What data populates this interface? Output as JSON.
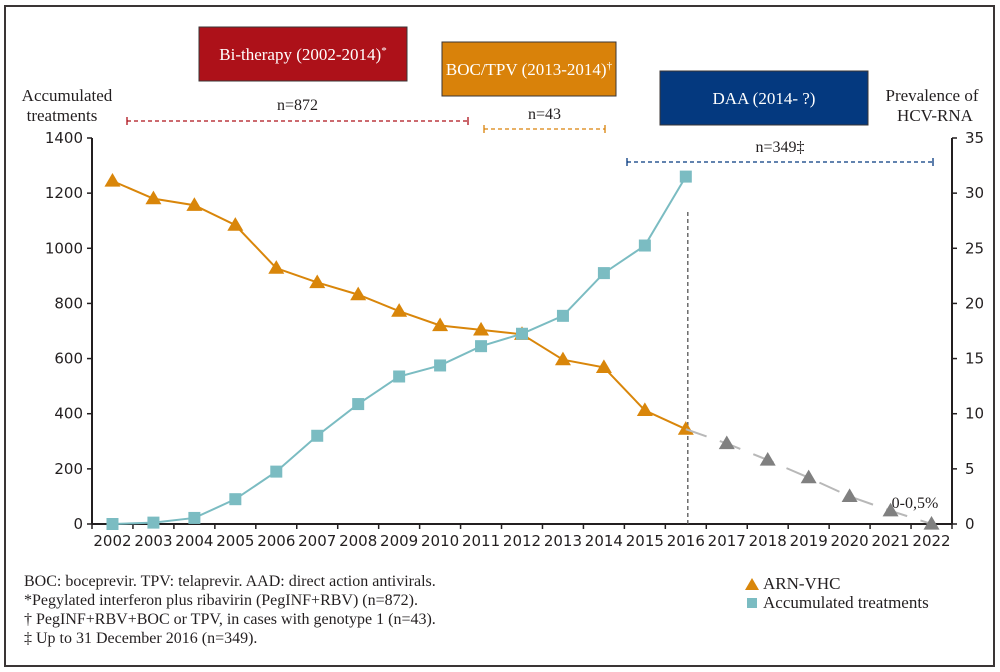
{
  "chart_data": {
    "type": "line",
    "title": "",
    "phases": [
      {
        "label": "Bi-therapy (2002-2014)",
        "marker": "*",
        "n_label": "n=872",
        "color": "#ad1119",
        "range": [
          2002,
          2011
        ]
      },
      {
        "label": "BOC/TPV (2013-2014)",
        "marker": "†",
        "n_label": "n=43",
        "color": "#d9820a",
        "range": [
          2012,
          2015
        ]
      },
      {
        "label": "DAA (2014- ?)",
        "marker": "",
        "n_label": "n=349‡",
        "color": "#04397f",
        "range": [
          2014.5,
          2022
        ]
      }
    ],
    "left_axis": {
      "label_line1": "Accumulated",
      "label_line2": "treatments",
      "ylim": [
        0,
        1400
      ],
      "ticks": [
        "0",
        "200",
        "400",
        "600",
        "800",
        "1000",
        "1200",
        "1400"
      ]
    },
    "right_axis": {
      "label_line1": "Prevalence of",
      "label_line2": "HCV-RNA",
      "ylim": [
        0,
        35
      ],
      "ticks": [
        "0",
        "5",
        "10",
        "15",
        "20",
        "25",
        "30",
        "35"
      ]
    },
    "x": [
      "2002",
      "2003",
      "2004",
      "2005",
      "2006",
      "2007",
      "2008",
      "2009",
      "2010",
      "2011",
      "2012",
      "2013",
      "2014",
      "2015",
      "2016",
      "2017",
      "2018",
      "2019",
      "2020",
      "2021",
      "2022"
    ],
    "series": [
      {
        "name": "ARN-VHC",
        "axis": "right",
        "marker": "triangle",
        "color": "#d9860a",
        "values": [
          31.1,
          29.5,
          28.9,
          27.1,
          23.2,
          21.9,
          20.8,
          19.3,
          18.0,
          17.6,
          17.2,
          14.9,
          14.2,
          10.3,
          8.6
        ]
      },
      {
        "name": "ARN-VHC (projected)",
        "axis": "right",
        "marker": "triangle",
        "color": "#808080",
        "x_start": "2016",
        "values": [
          8.6,
          7.3,
          5.8,
          4.2,
          2.5,
          1.2,
          0.0
        ]
      },
      {
        "name": "Accumulated treatments",
        "axis": "left",
        "marker": "square",
        "color": "#7bbcc2",
        "values": [
          0,
          5,
          22,
          90,
          190,
          320,
          435,
          535,
          575,
          645,
          690,
          755,
          910,
          1010,
          1260
        ]
      }
    ],
    "annotations": {
      "end_value": "0-0,5%",
      "cutoff_year": "2016"
    },
    "legend": {
      "position": "bottom-right",
      "entries": [
        "ARN-VHC",
        "Accumulated treatments"
      ]
    },
    "grid": false
  },
  "footnotes": [
    "BOC: boceprevir. TPV: telaprevir. AAD: direct action antivirals.",
    "*Pegylated interferon plus ribavirin (PegINF+RBV) (n=872).",
    "† PegINF+RBV+BOC or TPV, in cases with genotype 1 (n=43).",
    "‡ Up to 31 December 2016 (n=349)."
  ]
}
